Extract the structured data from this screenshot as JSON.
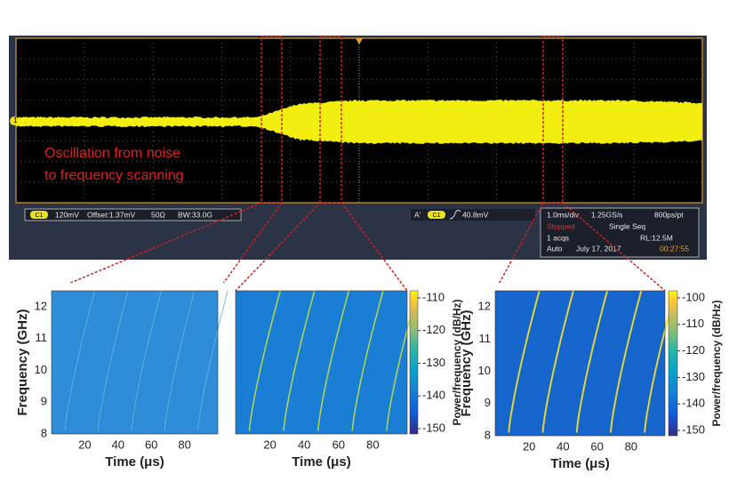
{
  "scope": {
    "channel_marker": "1",
    "annotation": [
      "Oscillation from noise",
      "to frequency scanning"
    ],
    "channel_box": {
      "badge": "C1",
      "scale": "120mV",
      "offset": "Offset:1.37mV",
      "impedance": "50Ω",
      "bandwidth": "BW:33.0G"
    },
    "trigger_box": {
      "mode": "A'",
      "badge": "C1",
      "level": "40.8mV"
    },
    "acquisition": {
      "timebase": "1.0ms/div",
      "rate": "1.25GS/s",
      "resolution": "800ps/pt",
      "state": "Stopped",
      "sequence": "Single Seq",
      "acqs": "1 acqs",
      "record": "RL:12.5M",
      "trigger_mode": "Auto",
      "date": "July 17, 2017",
      "time": "00:27:55"
    }
  },
  "panels": [
    {
      "ylabel": "Frequency (GHz)",
      "xlabel": "Time (μs)",
      "yticks": [
        8,
        9,
        10,
        11,
        12
      ],
      "xticks": [
        20,
        40,
        60,
        80
      ]
    },
    {
      "xlabel": "Time (μs)",
      "xticks": [
        20,
        40,
        60,
        80
      ],
      "colorbar": {
        "label": "Power/frequency (dB/Hz)",
        "ticks": [
          -110,
          -120,
          -130,
          -140,
          -150
        ]
      }
    },
    {
      "ylabel": "Frequency (GHz)",
      "xlabel": "Time (μs)",
      "yticks": [
        8,
        9,
        10,
        11,
        12
      ],
      "xticks": [
        20,
        40,
        60,
        80
      ],
      "colorbar": {
        "label": "Power/frequency (dB/Hz)",
        "ticks": [
          -100,
          -110,
          -120,
          -130,
          -140,
          -150
        ]
      }
    }
  ]
}
